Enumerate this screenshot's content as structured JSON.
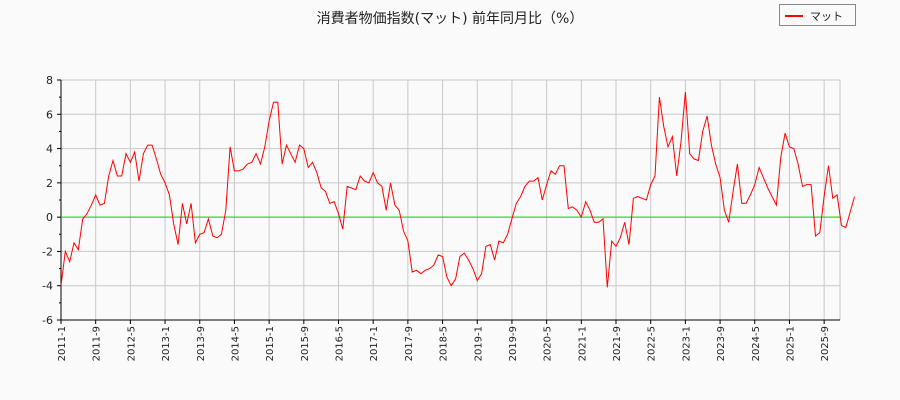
{
  "chart_data": {
    "type": "line",
    "title": "消費者物価指数(マット) 前年同月比（%）",
    "xlabel": "",
    "ylabel": "",
    "ylim": [
      -6,
      8
    ],
    "yticks": [
      -6,
      -4,
      -2,
      0,
      2,
      4,
      6,
      8
    ],
    "xtick_labels": [
      "2011-1",
      "2011-9",
      "2012-5",
      "2013-1",
      "2013-9",
      "2014-5",
      "2015-1",
      "2015-9",
      "2016-5",
      "2017-1",
      "2017-9",
      "2018-5",
      "2019-1",
      "2019-9",
      "2020-5",
      "2021-1",
      "2021-9",
      "2022-5",
      "2023-1",
      "2023-9",
      "2024-5",
      "2025-1",
      "2025-9"
    ],
    "grid": true,
    "legend_position": "top-right",
    "baseline": 0,
    "start": "2011-1",
    "series": [
      {
        "name": "マット",
        "color": "#ff0000",
        "values": [
          -4.0,
          -2.0,
          -2.6,
          -1.5,
          -1.9,
          -0.1,
          0.2,
          0.7,
          1.3,
          0.7,
          0.8,
          2.4,
          3.3,
          2.4,
          2.4,
          3.7,
          3.2,
          3.8,
          2.1,
          3.7,
          4.2,
          4.2,
          3.4,
          2.5,
          2.0,
          1.3,
          -0.4,
          -1.6,
          0.8,
          -0.4,
          0.8,
          -1.5,
          -1.0,
          -0.9,
          -0.1,
          -1.1,
          -1.2,
          -1.0,
          0.4,
          4.1,
          2.7,
          2.7,
          2.8,
          3.1,
          3.2,
          3.7,
          3.1,
          4.1,
          5.6,
          6.7,
          6.7,
          3.1,
          4.2,
          3.7,
          3.2,
          4.2,
          4.0,
          2.9,
          3.2,
          2.6,
          1.7,
          1.5,
          0.8,
          0.9,
          0.2,
          -0.7,
          1.8,
          1.7,
          1.6,
          2.4,
          2.1,
          2.0,
          2.6,
          2.0,
          1.8,
          0.4,
          2.0,
          0.7,
          0.4,
          -0.8,
          -1.4,
          -3.2,
          -3.1,
          -3.3,
          -3.1,
          -3.0,
          -2.8,
          -2.2,
          -2.3,
          -3.5,
          -4.0,
          -3.6,
          -2.3,
          -2.1,
          -2.5,
          -3.0,
          -3.7,
          -3.3,
          -1.7,
          -1.6,
          -2.5,
          -1.4,
          -1.5,
          -1.0,
          -0.1,
          0.8,
          1.2,
          1.8,
          2.1,
          2.1,
          2.3,
          1.0,
          1.9,
          2.7,
          2.5,
          3.0,
          3.0,
          0.5,
          0.6,
          0.4,
          0.0,
          0.9,
          0.4,
          -0.3,
          -0.3,
          -0.1,
          -4.1,
          -1.4,
          -1.7,
          -1.2,
          -0.3,
          -1.6,
          1.1,
          1.2,
          1.1,
          1.0,
          1.9,
          2.4,
          7.0,
          5.3,
          4.1,
          4.7,
          2.4,
          4.4,
          7.3,
          3.7,
          3.4,
          3.3,
          5.0,
          5.9,
          4.2,
          3.1,
          2.3,
          0.4,
          -0.3,
          1.5,
          3.1,
          0.8,
          0.8,
          1.3,
          1.9,
          2.9,
          2.3,
          1.7,
          1.2,
          0.7,
          3.5,
          4.9,
          4.1,
          4.0,
          3.1,
          1.8,
          1.9,
          1.9,
          -1.1,
          -0.9,
          1.2,
          3.0,
          1.1,
          1.3,
          -0.5,
          -0.6,
          0.3,
          1.2
        ]
      }
    ]
  },
  "legend": {
    "label": "マット"
  }
}
